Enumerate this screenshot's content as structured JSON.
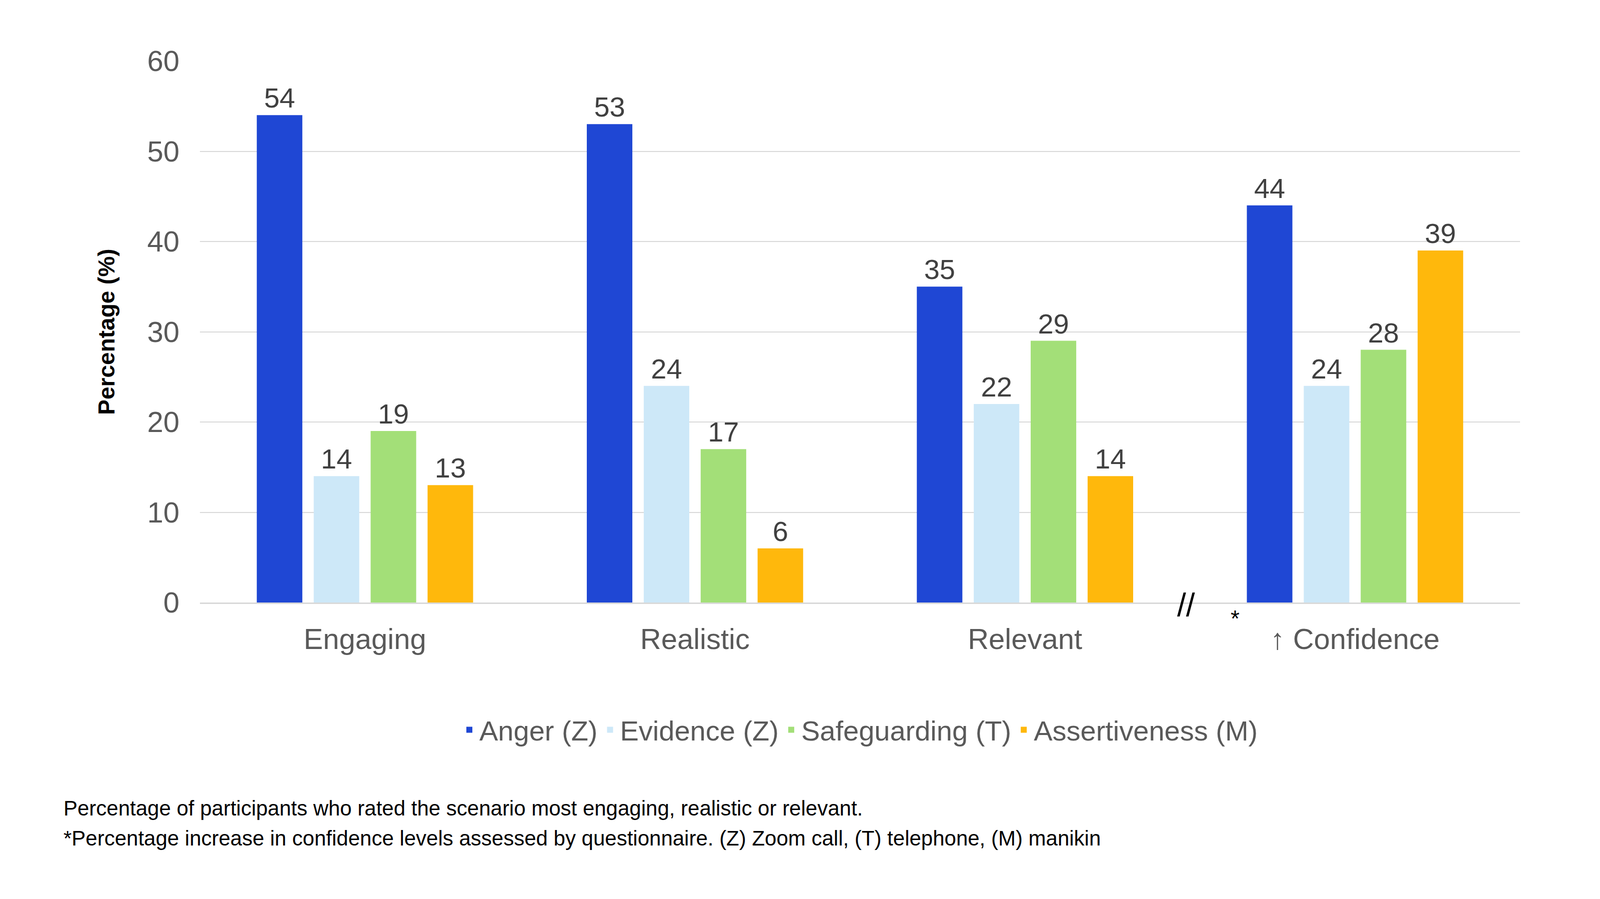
{
  "chart_data": {
    "type": "bar",
    "y_label": "Percentage (%)",
    "categories": [
      "Engaging",
      "Realistic",
      "Relevant",
      "↑ Confidence"
    ],
    "series": [
      {
        "name": "Anger (Z)",
        "color": "#1f47d4",
        "values": [
          54,
          53,
          35,
          44
        ]
      },
      {
        "name": "Evidence (Z)",
        "color": "#cde8f8",
        "values": [
          14,
          24,
          22,
          24
        ]
      },
      {
        "name": "Safeguarding (T)",
        "color": "#a3df78",
        "values": [
          19,
          17,
          29,
          28
        ]
      },
      {
        "name": "Assertiveness (M)",
        "color": "#ffb80c",
        "values": [
          13,
          6,
          14,
          39
        ]
      }
    ],
    "ylim": [
      0,
      60
    ],
    "yticks": [
      0,
      10,
      20,
      30,
      40,
      50,
      60
    ],
    "grid": true,
    "legend": "bottom",
    "data_labels": true,
    "annotations": [
      "//",
      "*",
      "Percentage of participants who rated the scenario most engaging, realistic or relevant.",
      "*Percentage increase in confidence levels assessed by questionnaire. (Z) Zoom call, (T) telephone, (M) manikin"
    ]
  }
}
